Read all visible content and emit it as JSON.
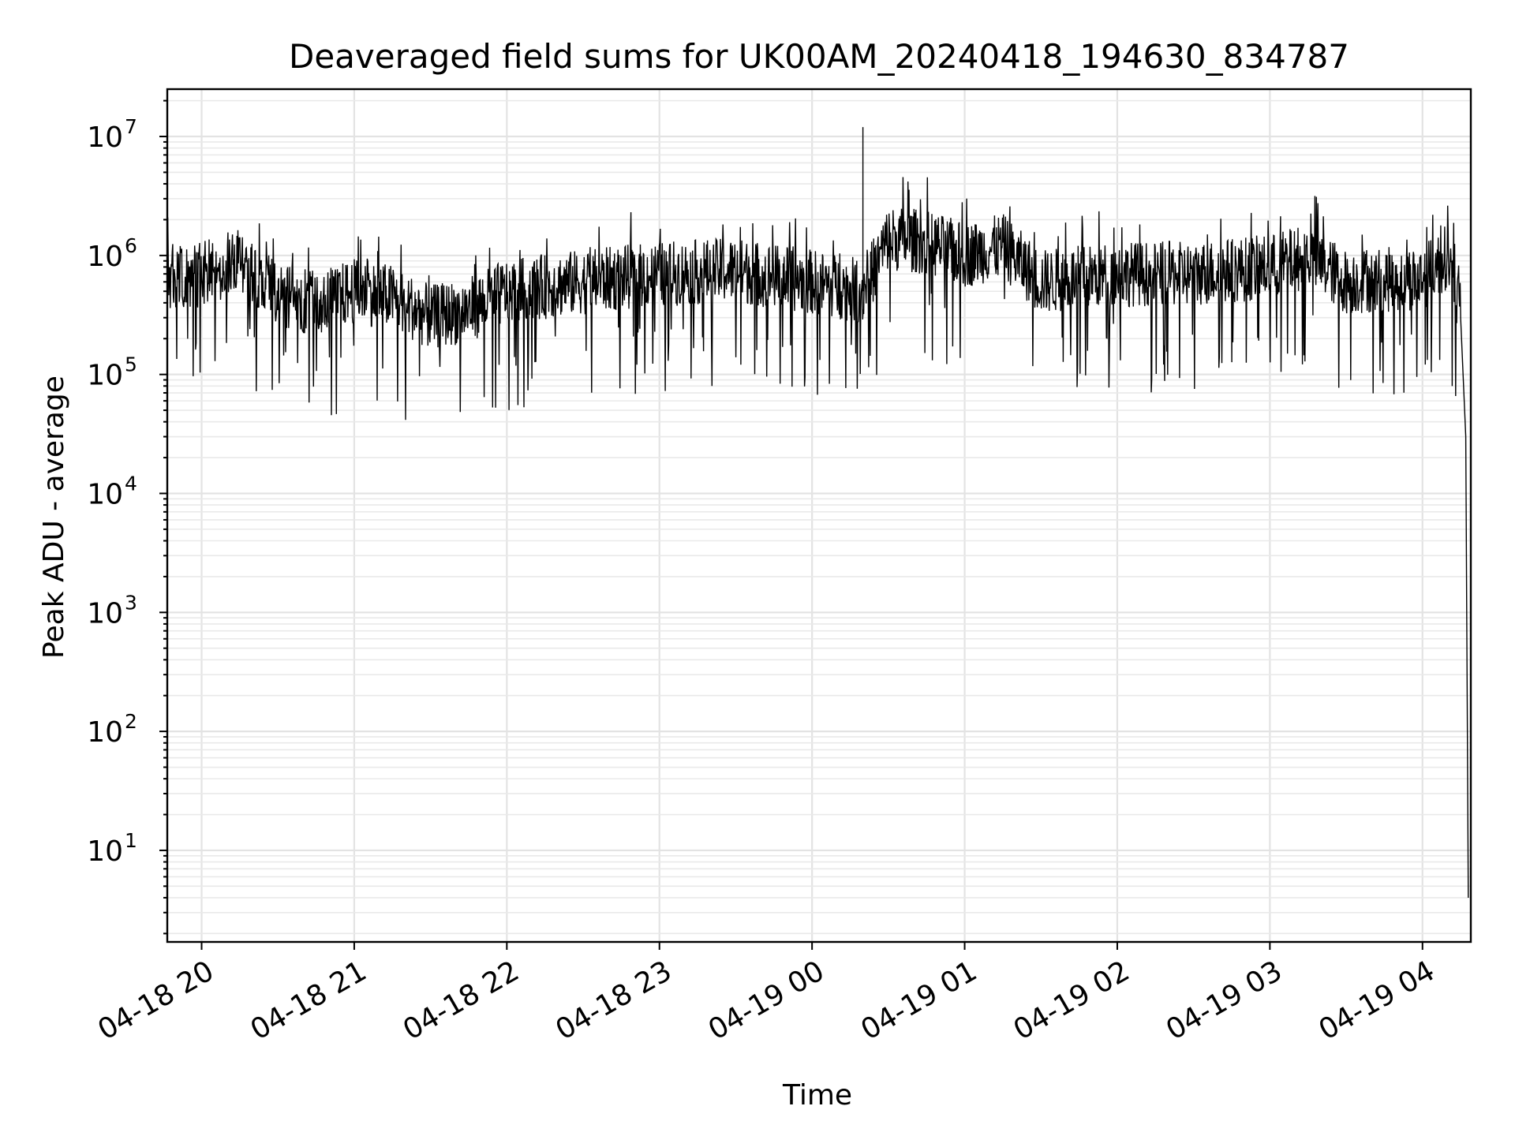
{
  "chart_data": {
    "type": "line",
    "title": "Deaveraged field sums for UK00AM_20240418_194630_834787",
    "xlabel": "Time",
    "ylabel": "Peak ADU - average",
    "yscale": "log",
    "ylim": [
      1.7,
      25000000
    ],
    "xlim": [
      "2024-04-18 19:46:30",
      "2024-04-19 04:19:00"
    ],
    "x_tick_labels": [
      "04-18 20",
      "04-18 21",
      "04-18 22",
      "04-18 23",
      "04-19 00",
      "04-19 01",
      "04-19 02",
      "04-19 03",
      "04-19 04"
    ],
    "y_ticks": [
      {
        "base": "10",
        "exp": "1"
      },
      {
        "base": "10",
        "exp": "2"
      },
      {
        "base": "10",
        "exp": "3"
      },
      {
        "base": "10",
        "exp": "4"
      },
      {
        "base": "10",
        "exp": "5"
      },
      {
        "base": "10",
        "exp": "6"
      },
      {
        "base": "10",
        "exp": "7"
      }
    ],
    "grid": true,
    "series": [
      {
        "color": "#000000",
        "x": [
          "2024-04-18 19:46:30",
          "2024-04-18 20:00",
          "2024-04-18 20:15",
          "2024-04-18 20:30",
          "2024-04-18 20:45",
          "2024-04-18 21:00",
          "2024-04-18 21:15",
          "2024-04-18 21:30",
          "2024-04-18 21:45",
          "2024-04-18 22:00",
          "2024-04-18 22:30",
          "2024-04-18 23:00",
          "2024-04-18 23:30",
          "2024-04-19 00:00",
          "2024-04-19 00:20",
          "2024-04-19 00:30",
          "2024-04-19 00:45",
          "2024-04-19 01:00",
          "2024-04-19 01:15",
          "2024-04-19 01:30",
          "2024-04-19 02:00",
          "2024-04-19 02:30",
          "2024-04-19 03:00",
          "2024-04-19 03:15",
          "2024-04-19 03:30",
          "2024-04-19 04:00",
          "2024-04-19 04:10",
          "2024-04-19 04:15",
          "2024-04-19 04:17",
          "2024-04-19 04:18"
        ],
        "y": [
          600000,
          700000,
          900000,
          450000,
          400000,
          500000,
          450000,
          300000,
          350000,
          500000,
          600000,
          700000,
          750000,
          600000,
          500000,
          1400000,
          1300000,
          1000000,
          1200000,
          600000,
          700000,
          700000,
          800000,
          1000000,
          600000,
          650000,
          1000000,
          300000,
          30000,
          4
        ]
      }
    ]
  }
}
